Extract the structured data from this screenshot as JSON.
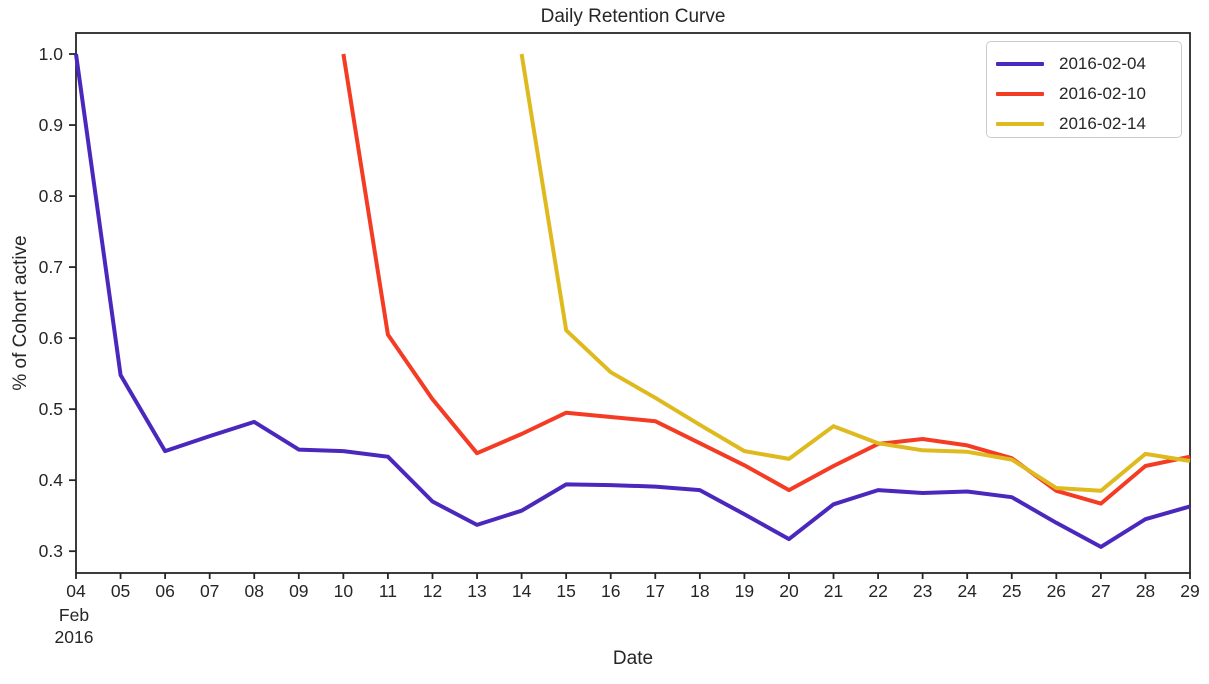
{
  "chart_data": {
    "type": "line",
    "title": "Daily Retention Curve",
    "xlabel": "Date",
    "ylabel": "% of Cohort active",
    "x_axis_note": [
      "Feb",
      "2016"
    ],
    "x_ticks": [
      "04",
      "05",
      "06",
      "07",
      "08",
      "09",
      "10",
      "11",
      "12",
      "13",
      "14",
      "15",
      "16",
      "17",
      "18",
      "19",
      "20",
      "21",
      "22",
      "23",
      "24",
      "25",
      "26",
      "27",
      "28",
      "29"
    ],
    "x_tick_days": [
      4,
      5,
      6,
      7,
      8,
      9,
      10,
      11,
      12,
      13,
      14,
      15,
      16,
      17,
      18,
      19,
      20,
      21,
      22,
      23,
      24,
      25,
      26,
      27,
      28,
      29
    ],
    "y_ticks": [
      1.0,
      0.9,
      0.8,
      0.7,
      0.6,
      0.5,
      0.4,
      0.3
    ],
    "y_tick_labels": [
      "1.0",
      "0.9",
      "0.8",
      "0.7",
      "0.6",
      "0.5",
      "0.4",
      "0.3"
    ],
    "xlim": [
      4,
      29
    ],
    "ylim": [
      0.2693,
      1.0296
    ],
    "grid": false,
    "legend_position": "upper right",
    "axis_color": "#262626",
    "series": [
      {
        "name": "2016-02-04",
        "color": "#4b28bd",
        "x": [
          4,
          5,
          6,
          7,
          8,
          9,
          10,
          11,
          12,
          13,
          14,
          15,
          16,
          17,
          18,
          19,
          20,
          21,
          22,
          23,
          24,
          25,
          26,
          27,
          28,
          29
        ],
        "values": [
          1.0,
          0.548,
          0.441,
          0.462,
          0.482,
          0.443,
          0.441,
          0.433,
          0.37,
          0.337,
          0.357,
          0.394,
          0.393,
          0.391,
          0.386,
          0.352,
          0.317,
          0.366,
          0.386,
          0.382,
          0.384,
          0.376,
          0.34,
          0.306,
          0.345,
          0.363
        ]
      },
      {
        "name": "2016-02-10",
        "color": "#f43c25",
        "x": [
          10,
          11,
          12,
          13,
          14,
          15,
          16,
          17,
          18,
          19,
          20,
          21,
          22,
          23,
          24,
          25,
          26,
          27,
          28,
          29
        ],
        "values": [
          1.0,
          0.605,
          0.514,
          0.438,
          0.465,
          0.495,
          0.489,
          0.483,
          0.452,
          0.421,
          0.386,
          0.42,
          0.451,
          0.458,
          0.449,
          0.431,
          0.385,
          0.367,
          0.42,
          0.433
        ]
      },
      {
        "name": "2016-02-14",
        "color": "#dfba1f",
        "x": [
          14,
          15,
          16,
          17,
          18,
          19,
          20,
          21,
          22,
          23,
          24,
          25,
          26,
          27,
          28,
          29
        ],
        "values": [
          1.0,
          0.611,
          0.552,
          0.516,
          0.478,
          0.441,
          0.43,
          0.476,
          0.452,
          0.442,
          0.44,
          0.429,
          0.389,
          0.385,
          0.437,
          0.427
        ]
      }
    ]
  }
}
